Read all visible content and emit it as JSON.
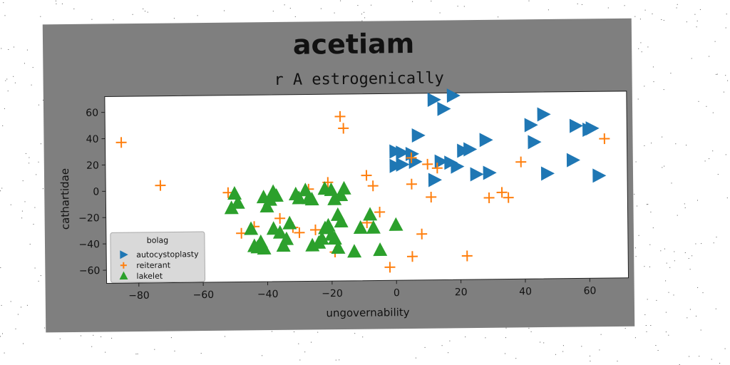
{
  "chart_data": {
    "type": "scatter",
    "title": "acetiam",
    "subtitle": "r A estrogenically",
    "xlabel": "ungovernability",
    "ylabel": "cathartidae",
    "xlim": [
      -90,
      72
    ],
    "ylim": [
      -70,
      72
    ],
    "xticks": [
      -80,
      -60,
      -40,
      -20,
      0,
      20,
      40,
      60
    ],
    "yticks": [
      -60,
      -40,
      -20,
      0,
      20,
      40,
      60
    ],
    "grid": false,
    "legend": {
      "title": "bolag",
      "placement": "lower-left"
    },
    "colors": {
      "frame": "#7f7f7f",
      "plot_bg": "#ffffff",
      "legend_bg": "#d9d9d9"
    },
    "series": [
      {
        "name": "autocystoplasty",
        "marker": "triangle-right",
        "color": "#1f77b4",
        "points": [
          [
            12,
            67
          ],
          [
            18,
            70
          ],
          [
            15,
            60
          ],
          [
            7,
            40
          ],
          [
            0,
            28
          ],
          [
            2,
            27
          ],
          [
            5,
            26
          ],
          [
            0,
            17
          ],
          [
            2,
            18
          ],
          [
            6,
            20
          ],
          [
            14,
            20
          ],
          [
            17,
            19
          ],
          [
            19,
            16
          ],
          [
            21,
            28
          ],
          [
            23,
            29
          ],
          [
            28,
            36
          ],
          [
            12,
            6
          ],
          [
            25,
            10
          ],
          [
            29,
            11
          ],
          [
            42,
            47
          ],
          [
            46,
            55
          ],
          [
            43,
            34
          ],
          [
            47,
            10
          ],
          [
            56,
            46
          ],
          [
            60,
            43
          ],
          [
            61,
            44
          ],
          [
            63,
            8
          ],
          [
            55,
            20
          ]
        ]
      },
      {
        "name": "reiterant",
        "marker": "plus",
        "color": "#ff7f0e",
        "points": [
          [
            -85,
            37
          ],
          [
            -73,
            4
          ],
          [
            -52,
            -2
          ],
          [
            -48,
            -33
          ],
          [
            -44,
            -28
          ],
          [
            -36,
            -22
          ],
          [
            -32,
            -29
          ],
          [
            -30,
            -33
          ],
          [
            -27,
            0
          ],
          [
            -25,
            -31
          ],
          [
            -21,
            5
          ],
          [
            -17,
            55
          ],
          [
            -16,
            46
          ],
          [
            -19,
            -48
          ],
          [
            -9,
            10
          ],
          [
            -7,
            2
          ],
          [
            -5,
            -18
          ],
          [
            -9,
            -26
          ],
          [
            -2,
            -60
          ],
          [
            5,
            23
          ],
          [
            5,
            3
          ],
          [
            5,
            -52
          ],
          [
            8,
            -35
          ],
          [
            10,
            18
          ],
          [
            11,
            -7
          ],
          [
            13,
            15
          ],
          [
            22,
            -52
          ],
          [
            29,
            -8
          ],
          [
            33,
            -4
          ],
          [
            35,
            -8
          ],
          [
            39,
            19
          ],
          [
            65,
            36
          ]
        ]
      },
      {
        "name": "lakelet",
        "marker": "triangle-up",
        "color": "#2ca02c",
        "points": [
          [
            -50,
            -3
          ],
          [
            -49,
            -10
          ],
          [
            -51,
            -14
          ],
          [
            -45,
            -30
          ],
          [
            -44,
            -43
          ],
          [
            -42,
            -40
          ],
          [
            -41,
            -45
          ],
          [
            -40,
            -13
          ],
          [
            -39,
            -8
          ],
          [
            -41,
            -6
          ],
          [
            -38,
            -2
          ],
          [
            -37,
            -5
          ],
          [
            -38,
            -30
          ],
          [
            -36,
            -33
          ],
          [
            -35,
            -43
          ],
          [
            -34,
            -38
          ],
          [
            -33,
            -26
          ],
          [
            -31,
            -4
          ],
          [
            -30,
            -7
          ],
          [
            -28,
            -1
          ],
          [
            -27,
            -7
          ],
          [
            -26,
            -8
          ],
          [
            -24,
            -41
          ],
          [
            -23,
            -38
          ],
          [
            -22,
            -30
          ],
          [
            -21,
            -28
          ],
          [
            -20,
            -35
          ],
          [
            -19,
            -38
          ],
          [
            -18,
            -45
          ],
          [
            -17,
            -25
          ],
          [
            -18,
            -20
          ],
          [
            -19,
            -8
          ],
          [
            -17,
            -5
          ],
          [
            -20,
            -1
          ],
          [
            -22,
            0
          ],
          [
            -16,
            0
          ],
          [
            -13,
            -48
          ],
          [
            -11,
            -30
          ],
          [
            -8,
            -20
          ],
          [
            -7,
            -30
          ],
          [
            -5,
            -47
          ],
          [
            0,
            -28
          ],
          [
            -26,
            -43
          ],
          [
            -43,
            -44
          ]
        ]
      }
    ]
  }
}
